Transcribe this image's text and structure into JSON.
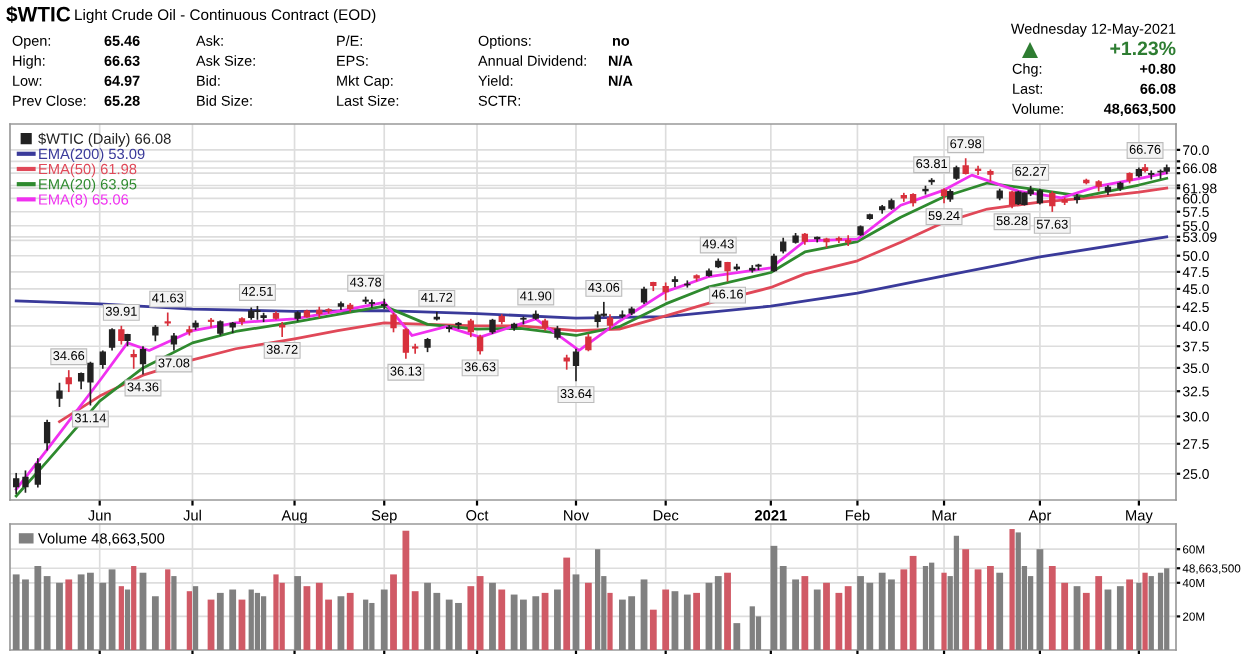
{
  "chart_data": [
    {
      "type": "other",
      "title": "$WTIC",
      "subtitle": "Light Crude Oil - Continuous Contract (EOD)",
      "annotations": [
        "Open:",
        "65.46",
        "High:",
        "66.63",
        "Low:",
        "64.97",
        "Prev Close:",
        "65.28",
        "Ask:",
        "Ask Size:",
        "Bid:",
        "Bid Size:",
        "P/E:",
        "EPS:",
        "Mkt Cap:",
        "Last Size:",
        "Options:",
        "no",
        "Annual Dividend:",
        "N/A",
        "Yield:",
        "N/A",
        "SCTR:",
        "Wednesday 12-May-2021",
        "+1.23%",
        "Chg:",
        "+0.80",
        "Last:",
        "66.08",
        "Volume:",
        "48,663,500"
      ]
    },
    {
      "type": "candlestick",
      "log": true,
      "grid": true,
      "legend": "top left",
      "xlim": [
        "2020-05-03",
        "2021-05-15"
      ],
      "xticks": [
        {
          "value": "2020-06-01",
          "label": "Jun"
        },
        {
          "value": "2020-07-01",
          "label": "Jul"
        },
        {
          "value": "2020-08-03",
          "label": "Aug"
        },
        {
          "value": "2020-09-01",
          "label": "Sep"
        },
        {
          "value": "2020-10-01",
          "label": "Oct"
        },
        {
          "value": "2020-11-02",
          "label": "Nov"
        },
        {
          "value": "2020-12-01",
          "label": "Dec"
        },
        {
          "value": "2021-01-04",
          "label": "2021"
        },
        {
          "value": "2021-02-01",
          "label": "Feb"
        },
        {
          "value": "2021-03-01",
          "label": "Mar"
        },
        {
          "value": "2021-04-01",
          "label": "Apr"
        },
        {
          "value": "2021-05-03",
          "label": "May"
        }
      ],
      "ylim": [
        23,
        76
      ],
      "yticks": [
        {
          "value": 25,
          "label": "25.0"
        },
        27.5,
        {
          "value": 30,
          "label": "30.0"
        },
        32.5,
        {
          "value": 35,
          "label": "35.0"
        },
        37.5,
        {
          "value": 40,
          "label": "40.0"
        },
        42.5,
        {
          "value": 45,
          "label": "45.0"
        },
        47.5,
        {
          "value": 50,
          "label": "50.0"
        },
        {
          "value": 52.5,
          "label": null
        },
        53.09,
        {
          "value": 55,
          "label": "55.0"
        },
        57.5,
        {
          "value": 60,
          "label": "60.0"
        },
        61.98,
        {
          "value": 62.5,
          "label": null
        },
        {
          "value": 65,
          "label": null
        },
        66.08,
        {
          "value": 67.5,
          "label": null
        },
        {
          "value": 70,
          "label": "70.0"
        }
      ],
      "series": [
        {
          "name": "$WTIC (Daily) 66.08",
          "type": "candlestick",
          "color": "#222222",
          "colors": [
            "#222222",
            "#222222",
            "#222222",
            "#222222",
            "#222222",
            "#d8303c",
            "#222222",
            "#222222",
            "#222222",
            "#222222",
            "#d8303c",
            "#222222",
            "#d8303c",
            "#222222",
            "#222222",
            "#d8303c",
            "#222222",
            "#d8303c",
            "#222222",
            "#d8303c",
            "#222222",
            "#222222",
            "#d8303c",
            "#222222",
            "#222222",
            "#222222",
            "#d8303c",
            "#d8303c",
            "#222222",
            "#d8303c",
            "#d8303c",
            "#d8303c",
            "#222222",
            "#d8303c",
            "#222222",
            "#222222",
            "#222222",
            "#d8303c",
            "#d8303c",
            "#d8303c",
            "#222222",
            "#222222",
            "#222222",
            "#222222",
            "#d8303c",
            "#d8303c",
            "#222222",
            "#d8303c",
            "#222222",
            "#222222",
            "#222222",
            "#d8303c",
            "#222222",
            "#d8303c",
            "#222222",
            "#d8303c",
            "#222222",
            "#222222",
            "#d8303c",
            "#222222",
            "#222222",
            "#222222",
            "#d8303c",
            "#d8303c",
            "#222222",
            "#222222",
            "#d8303c",
            "#222222",
            "#222222",
            "#d8303c",
            "#222222",
            "#222222",
            "#222222",
            "#222222",
            "#222222",
            "#222222",
            "#d8303c",
            "#222222",
            "#d8303c",
            "#d8303c",
            "#d8303c",
            "#222222",
            "#222222",
            "#222222",
            "#222222",
            "#d8303c",
            "#d8303c",
            "#222222",
            "#222222",
            "#d8303c",
            "#222222",
            "#222222",
            "#d8303c",
            "#d8303c",
            "#d8303c",
            "#222222",
            "#d8303c",
            "#222222",
            "#222222",
            "#222222",
            "#222222",
            "#d8303c",
            "#d8303c",
            "#222222",
            "#d8303c",
            "#d8303c",
            "#222222",
            "#222222",
            "#d8303c",
            "#222222",
            "#d8303c",
            "#222222",
            "#222222",
            "#222222"
          ],
          "x": [
            "2020-05-05",
            "2020-05-08",
            "2020-05-12",
            "2020-05-15",
            "2020-05-19",
            "2020-05-22",
            "2020-05-26",
            "2020-05-29",
            "2020-06-02",
            "2020-06-05",
            "2020-06-08",
            "2020-06-10",
            "2020-06-12",
            "2020-06-15",
            "2020-06-19",
            "2020-06-23",
            "2020-06-25",
            "2020-06-30",
            "2020-07-02",
            "2020-07-07",
            "2020-07-10",
            "2020-07-14",
            "2020-07-17",
            "2020-07-20",
            "2020-07-22",
            "2020-07-24",
            "2020-07-28",
            "2020-07-30",
            "2020-08-04",
            "2020-08-07",
            "2020-08-11",
            "2020-08-14",
            "2020-08-18",
            "2020-08-21",
            "2020-08-26",
            "2020-08-28",
            "2020-09-01",
            "2020-09-04",
            "2020-09-08",
            "2020-09-11",
            "2020-09-15",
            "2020-09-18",
            "2020-09-22",
            "2020-09-25",
            "2020-09-29",
            "2020-10-02",
            "2020-10-06",
            "2020-10-09",
            "2020-10-13",
            "2020-10-16",
            "2020-10-20",
            "2020-10-23",
            "2020-10-27",
            "2020-10-30",
            "2020-11-02",
            "2020-11-06",
            "2020-11-09",
            "2020-11-11",
            "2020-11-13",
            "2020-11-17",
            "2020-11-20",
            "2020-11-24",
            "2020-11-27",
            "2020-12-01",
            "2020-12-04",
            "2020-12-08",
            "2020-12-11",
            "2020-12-15",
            "2020-12-18",
            "2020-12-21",
            "2020-12-24",
            "2020-12-29",
            "2020-12-31",
            "2021-01-05",
            "2021-01-08",
            "2021-01-12",
            "2021-01-15",
            "2021-01-19",
            "2021-01-22",
            "2021-01-26",
            "2021-01-29",
            "2021-02-02",
            "2021-02-05",
            "2021-02-09",
            "2021-02-12",
            "2021-02-16",
            "2021-02-19",
            "2021-02-23",
            "2021-02-25",
            "2021-03-01",
            "2021-03-03",
            "2021-03-05",
            "2021-03-08",
            "2021-03-12",
            "2021-03-16",
            "2021-03-19",
            "2021-03-23",
            "2021-03-25",
            "2021-03-27",
            "2021-03-29",
            "2021-04-01",
            "2021-04-05",
            "2021-04-09",
            "2021-04-13",
            "2021-04-16",
            "2021-04-20",
            "2021-04-23",
            "2021-04-27",
            "2021-04-30",
            "2021-05-03",
            "2021-05-05",
            "2021-05-07",
            "2021-05-10",
            "2021-05-12"
          ],
          "ohlc": [
            [
              24.0,
              25.0,
              23.5,
              24.6
            ],
            [
              24.0,
              25.2,
              23.6,
              24.7
            ],
            [
              24.2,
              26.2,
              24.0,
              25.8
            ],
            [
              27.6,
              29.6,
              27.0,
              29.4
            ],
            [
              31.8,
              33.3,
              31.0,
              32.5
            ],
            [
              33.9,
              34.66,
              32.5,
              33.3
            ],
            [
              33.6,
              34.4,
              32.8,
              34.35
            ],
            [
              33.5,
              35.6,
              31.14,
              35.5
            ],
            [
              35.4,
              36.9,
              35.0,
              36.8
            ],
            [
              37.4,
              39.6,
              37.1,
              39.5
            ],
            [
              39.5,
              39.91,
              37.8,
              38.2
            ],
            [
              38.2,
              38.9,
              37.6,
              38.9
            ],
            [
              36.5,
              37.0,
              35.0,
              36.3
            ],
            [
              35.5,
              37.4,
              34.36,
              37.1
            ],
            [
              38.9,
              40.0,
              38.2,
              39.8
            ],
            [
              40.5,
              41.63,
              40.1,
              40.4
            ],
            [
              37.8,
              39.0,
              37.08,
              38.7
            ],
            [
              39.5,
              39.9,
              38.9,
              39.3
            ],
            [
              39.9,
              40.6,
              39.6,
              40.3
            ],
            [
              40.7,
              40.9,
              39.9,
              40.6
            ],
            [
              39.1,
              40.6,
              38.9,
              40.5
            ],
            [
              39.9,
              40.4,
              39.2,
              40.3
            ],
            [
              40.9,
              41.0,
              40.2,
              40.6
            ],
            [
              41.1,
              42.3,
              40.9,
              41.9
            ],
            [
              41.9,
              42.51,
              40.9,
              41.9
            ],
            [
              41.1,
              41.6,
              40.6,
              41.3
            ],
            [
              41.6,
              41.8,
              40.9,
              41.0
            ],
            [
              40.1,
              40.4,
              38.72,
              39.9
            ],
            [
              41.0,
              41.8,
              40.7,
              41.7
            ],
            [
              41.9,
              42.0,
              41.2,
              41.2
            ],
            [
              42.0,
              42.4,
              41.1,
              41.6
            ],
            [
              42.1,
              42.2,
              41.7,
              42.0
            ],
            [
              42.6,
              43.1,
              42.2,
              42.9
            ],
            [
              42.7,
              42.9,
              41.9,
              42.3
            ],
            [
              43.3,
              43.78,
              43.0,
              43.4
            ],
            [
              43.0,
              43.4,
              42.5,
              43.0
            ],
            [
              42.7,
              43.5,
              42.3,
              42.8
            ],
            [
              41.4,
              41.6,
              39.3,
              39.8
            ],
            [
              39.5,
              39.6,
              36.13,
              36.8
            ],
            [
              37.4,
              37.7,
              36.7,
              37.3
            ],
            [
              37.4,
              38.4,
              36.9,
              38.3
            ],
            [
              40.9,
              41.72,
              40.8,
              41.1
            ],
            [
              39.7,
              40.0,
              39.3,
              39.8
            ],
            [
              40.2,
              40.4,
              39.7,
              40.3
            ],
            [
              40.6,
              40.8,
              38.7,
              39.3
            ],
            [
              38.6,
              38.8,
              36.63,
              37.0
            ],
            [
              39.3,
              40.8,
              39.1,
              40.7
            ],
            [
              41.2,
              41.4,
              40.3,
              40.6
            ],
            [
              39.8,
              40.3,
              39.5,
              40.2
            ],
            [
              40.9,
              41.1,
              40.3,
              40.9
            ],
            [
              41.0,
              41.9,
              40.9,
              41.5
            ],
            [
              40.6,
              40.8,
              39.5,
              39.85
            ],
            [
              38.6,
              39.9,
              38.4,
              39.6
            ],
            [
              36.1,
              36.4,
              34.9,
              35.8
            ],
            [
              35.3,
              37.1,
              33.64,
              36.8
            ],
            [
              38.6,
              38.9,
              37.0,
              37.1
            ],
            [
              40.6,
              41.8,
              39.9,
              41.4
            ],
            [
              41.4,
              43.06,
              41.3,
              41.5
            ],
            [
              41.0,
              41.4,
              39.6,
              40.1
            ],
            [
              41.3,
              41.9,
              41.1,
              41.4
            ],
            [
              41.7,
              42.4,
              41.5,
              42.2
            ],
            [
              43.2,
              45.2,
              43.0,
              44.9
            ],
            [
              45.9,
              45.9,
              44.8,
              45.5
            ],
            [
              45.3,
              45.8,
              43.5,
              44.6
            ],
            [
              46.1,
              46.7,
              45.4,
              46.3
            ],
            [
              45.6,
              46.1,
              45.3,
              45.6
            ],
            [
              46.9,
              47.0,
              46.2,
              46.6
            ],
            [
              47.0,
              47.9,
              46.9,
              47.6
            ],
            [
              48.3,
              49.43,
              48.2,
              49.1
            ],
            [
              48.9,
              48.9,
              46.16,
              47.7
            ],
            [
              48.0,
              48.6,
              47.8,
              48.2
            ],
            [
              47.8,
              48.4,
              47.5,
              48.0
            ],
            [
              48.4,
              48.6,
              47.9,
              48.5
            ],
            [
              47.7,
              50.2,
              47.6,
              49.9
            ],
            [
              50.8,
              52.8,
              50.5,
              52.2
            ],
            [
              52.2,
              53.6,
              52.1,
              53.2
            ],
            [
              53.5,
              53.6,
              51.9,
              52.4
            ],
            [
              52.8,
              53.0,
              52.3,
              52.98
            ],
            [
              52.7,
              52.8,
              51.4,
              52.3
            ],
            [
              52.8,
              53.0,
              52.2,
              52.6
            ],
            [
              52.5,
              53.2,
              51.7,
              52.2
            ],
            [
              53.5,
              54.9,
              53.4,
              54.8
            ],
            [
              56.3,
              57.0,
              56.2,
              56.9
            ],
            [
              57.9,
              58.6,
              57.3,
              58.4
            ],
            [
              58.2,
              59.8,
              58.0,
              59.5
            ],
            [
              60.5,
              60.9,
              59.5,
              60.1
            ],
            [
              60.7,
              60.8,
              58.6,
              59.2
            ],
            [
              61.5,
              62.3,
              60.9,
              61.7
            ],
            [
              63.3,
              63.81,
              62.8,
              63.5
            ],
            [
              61.6,
              61.8,
              59.24,
              60.6
            ],
            [
              59.9,
              61.6,
              59.5,
              61.3
            ],
            [
              64.0,
              66.4,
              63.8,
              66.1
            ],
            [
              66.5,
              67.98,
              64.9,
              65.0
            ],
            [
              65.8,
              66.4,
              64.8,
              65.6
            ],
            [
              65.3,
              65.6,
              63.5,
              64.8
            ],
            [
              60.1,
              61.7,
              59.8,
              61.4
            ],
            [
              61.2,
              61.3,
              58.28,
              58.8
            ],
            [
              59.0,
              61.3,
              58.9,
              61.2
            ],
            [
              58.9,
              61.0,
              58.8,
              60.97
            ],
            [
              60.9,
              62.27,
              60.6,
              61.6
            ],
            [
              59.2,
              61.7,
              59.0,
              61.45
            ],
            [
              60.9,
              61.2,
              57.63,
              58.65
            ],
            [
              59.7,
              60.0,
              58.9,
              59.3
            ],
            [
              59.8,
              60.7,
              59.2,
              60.2
            ],
            [
              63.5,
              63.7,
              62.9,
              63.1
            ],
            [
              63.2,
              63.4,
              61.5,
              62.4
            ],
            [
              61.4,
              62.4,
              60.8,
              62.1
            ],
            [
              62.0,
              63.1,
              61.6,
              62.9
            ],
            [
              64.9,
              65.0,
              63.1,
              63.6
            ],
            [
              64.5,
              66.0,
              64.3,
              65.7
            ],
            [
              66.1,
              66.76,
              65.3,
              65.6
            ],
            [
              64.8,
              65.4,
              63.9,
              64.9
            ],
            [
              65.3,
              65.6,
              64.0,
              65.3
            ],
            [
              65.46,
              66.63,
              64.97,
              66.08
            ]
          ]
        },
        {
          "name": "EMA(200) 53.09",
          "type": "line",
          "color": "#3a3a9a",
          "x": [
            "2020-05-05",
            "2020-06-01",
            "2020-07-01",
            "2020-08-03",
            "2020-09-01",
            "2020-10-01",
            "2020-11-02",
            "2020-12-01",
            "2021-01-04",
            "2021-02-01",
            "2021-03-01",
            "2021-04-01",
            "2021-05-12"
          ],
          "values": [
            43.3,
            42.9,
            42.2,
            41.9,
            42.0,
            41.6,
            41.0,
            41.2,
            42.6,
            44.4,
            46.9,
            49.8,
            53.09
          ]
        },
        {
          "name": "EMA(50) 61.98",
          "type": "line",
          "color": "#e04858",
          "x": [
            "2020-05-19",
            "2020-06-01",
            "2020-06-15",
            "2020-07-01",
            "2020-07-15",
            "2020-08-03",
            "2020-08-17",
            "2020-09-01",
            "2020-09-15",
            "2020-10-01",
            "2020-10-15",
            "2020-11-02",
            "2020-11-16",
            "2020-12-01",
            "2020-12-15",
            "2021-01-04",
            "2021-01-15",
            "2021-02-01",
            "2021-02-15",
            "2021-03-01",
            "2021-03-15",
            "2021-04-01",
            "2021-04-15",
            "2021-05-03",
            "2021-05-12"
          ],
          "values": [
            29.5,
            32.0,
            34.2,
            35.9,
            37.2,
            38.4,
            39.4,
            40.4,
            40.2,
            40.0,
            40.0,
            39.4,
            39.6,
            41.3,
            43.0,
            45.2,
            47.2,
            49.2,
            52.2,
            55.6,
            58.0,
            59.3,
            60.0,
            61.2,
            61.98
          ]
        },
        {
          "name": "EMA(20) 63.95",
          "type": "line",
          "color": "#2e8a2e",
          "x": [
            "2020-05-05",
            "2020-05-15",
            "2020-06-01",
            "2020-06-15",
            "2020-07-01",
            "2020-07-15",
            "2020-08-03",
            "2020-08-17",
            "2020-09-01",
            "2020-09-15",
            "2020-10-01",
            "2020-10-15",
            "2020-11-02",
            "2020-11-16",
            "2020-12-01",
            "2020-12-15",
            "2021-01-04",
            "2021-01-15",
            "2021-02-01",
            "2021-02-15",
            "2021-03-01",
            "2021-03-15",
            "2021-04-01",
            "2021-04-15",
            "2021-05-03",
            "2021-05-12"
          ],
          "values": [
            23.3,
            26.0,
            31.5,
            35.0,
            37.9,
            39.3,
            40.5,
            41.5,
            42.6,
            40.2,
            39.6,
            39.7,
            38.8,
            39.9,
            42.9,
            45.3,
            47.4,
            50.6,
            52.3,
            56.5,
            60.3,
            63.0,
            61.6,
            60.4,
            62.6,
            63.95
          ]
        },
        {
          "name": "EMA(8) 65.06",
          "type": "line",
          "color": "#f030f0",
          "x": [
            "2020-05-05",
            "2020-05-15",
            "2020-06-01",
            "2020-06-10",
            "2020-06-17",
            "2020-07-01",
            "2020-07-15",
            "2020-08-03",
            "2020-08-17",
            "2020-09-01",
            "2020-09-10",
            "2020-09-21",
            "2020-10-02",
            "2020-10-20",
            "2020-11-03",
            "2020-11-16",
            "2020-12-01",
            "2020-12-15",
            "2021-01-04",
            "2021-01-15",
            "2021-02-01",
            "2021-02-15",
            "2021-03-01",
            "2021-03-10",
            "2021-03-25",
            "2021-04-08",
            "2021-04-20",
            "2021-05-03",
            "2021-05-12"
          ],
          "values": [
            23.8,
            27.0,
            33.6,
            37.9,
            37.0,
            39.4,
            40.4,
            40.9,
            41.9,
            43.1,
            38.8,
            39.9,
            38.6,
            40.9,
            37.0,
            40.6,
            44.6,
            46.8,
            48.1,
            52.4,
            52.7,
            58.7,
            61.6,
            64.6,
            61.4,
            60.1,
            62.4,
            63.9,
            65.06
          ]
        }
      ],
      "annotations": [
        {
          "text": "34.66",
          "x": "2020-05-22",
          "y": 34.66
        },
        {
          "text": "31.14",
          "x": "2020-05-29",
          "y": 31.14
        },
        {
          "text": "39.91",
          "x": "2020-06-08",
          "y": 39.91
        },
        {
          "text": "34.36",
          "x": "2020-06-15",
          "y": 34.36
        },
        {
          "text": "41.63",
          "x": "2020-06-23",
          "y": 41.63
        },
        {
          "text": "37.08",
          "x": "2020-06-25",
          "y": 37.08
        },
        {
          "text": "42.51",
          "x": "2020-07-22",
          "y": 42.51
        },
        {
          "text": "38.72",
          "x": "2020-07-30",
          "y": 38.72
        },
        {
          "text": "43.78",
          "x": "2020-08-26",
          "y": 43.78
        },
        {
          "text": "36.13",
          "x": "2020-09-08",
          "y": 36.13
        },
        {
          "text": "41.72",
          "x": "2020-09-18",
          "y": 41.72
        },
        {
          "text": "36.63",
          "x": "2020-10-02",
          "y": 36.63
        },
        {
          "text": "41.90",
          "x": "2020-10-20",
          "y": 41.9
        },
        {
          "text": "33.64",
          "x": "2020-11-02",
          "y": 33.64
        },
        {
          "text": "43.06",
          "x": "2020-11-11",
          "y": 43.06
        },
        {
          "text": "49.43",
          "x": "2020-12-18",
          "y": 49.43
        },
        {
          "text": "46.16",
          "x": "2020-12-21",
          "y": 46.16
        },
        {
          "text": "63.81",
          "x": "2021-02-25",
          "y": 63.81
        },
        {
          "text": "59.24",
          "x": "2021-03-01",
          "y": 59.24
        },
        {
          "text": "67.98",
          "x": "2021-03-08",
          "y": 67.98
        },
        {
          "text": "58.28",
          "x": "2021-03-23",
          "y": 58.28
        },
        {
          "text": "62.27",
          "x": "2021-03-29",
          "y": 62.27
        },
        {
          "text": "57.63",
          "x": "2021-04-05",
          "y": 57.63
        },
        {
          "text": "66.76",
          "x": "2021-05-05",
          "y": 66.76
        }
      ]
    },
    {
      "type": "bar",
      "grid": true,
      "legend": "top left",
      "tick_labels": "y",
      "xlim": [
        "2020-05-03",
        "2021-05-15"
      ],
      "xticks": [
        {
          "value": "2020-06-01",
          "label": null
        },
        {
          "value": "2020-07-01",
          "label": null
        },
        {
          "value": "2020-08-03",
          "label": null
        },
        {
          "value": "2020-09-01",
          "label": null
        },
        {
          "value": "2020-10-01",
          "label": null
        },
        {
          "value": "2020-11-02",
          "label": null
        },
        {
          "value": "2020-12-01",
          "label": null
        },
        {
          "value": "2021-01-04",
          "label": null
        },
        {
          "value": "2021-02-01",
          "label": null
        },
        {
          "value": "2021-03-01",
          "label": null
        },
        {
          "value": "2021-04-01",
          "label": null
        },
        {
          "value": "2021-05-03",
          "label": null
        }
      ],
      "ylim": [
        0,
        75000000
      ],
      "yticks": [
        {
          "value": 20000000,
          "label": "20M"
        },
        {
          "value": 40000000,
          "label": "40M"
        },
        {
          "value": 48663500,
          "label": "48,663,500"
        },
        {
          "value": 60000000,
          "label": "60M"
        }
      ],
      "series": [
        {
          "name": "Volume 48,663,500",
          "color": "#808080",
          "x": [
            "2020-05-05",
            "2020-05-08",
            "2020-05-12",
            "2020-05-15",
            "2020-05-19",
            "2020-05-22",
            "2020-05-26",
            "2020-05-29",
            "2020-06-02",
            "2020-06-05",
            "2020-06-08",
            "2020-06-10",
            "2020-06-12",
            "2020-06-15",
            "2020-06-19",
            "2020-06-23",
            "2020-06-25",
            "2020-06-30",
            "2020-07-02",
            "2020-07-07",
            "2020-07-10",
            "2020-07-14",
            "2020-07-17",
            "2020-07-20",
            "2020-07-22",
            "2020-07-24",
            "2020-07-28",
            "2020-07-30",
            "2020-08-04",
            "2020-08-07",
            "2020-08-11",
            "2020-08-14",
            "2020-08-18",
            "2020-08-21",
            "2020-08-26",
            "2020-08-28",
            "2020-09-01",
            "2020-09-04",
            "2020-09-08",
            "2020-09-11",
            "2020-09-15",
            "2020-09-18",
            "2020-09-22",
            "2020-09-25",
            "2020-09-29",
            "2020-10-02",
            "2020-10-06",
            "2020-10-09",
            "2020-10-13",
            "2020-10-16",
            "2020-10-20",
            "2020-10-23",
            "2020-10-27",
            "2020-10-30",
            "2020-11-02",
            "2020-11-06",
            "2020-11-09",
            "2020-11-11",
            "2020-11-13",
            "2020-11-17",
            "2020-11-20",
            "2020-11-24",
            "2020-11-27",
            "2020-12-01",
            "2020-12-04",
            "2020-12-08",
            "2020-12-11",
            "2020-12-15",
            "2020-12-18",
            "2020-12-21",
            "2020-12-24",
            "2020-12-29",
            "2020-12-31",
            "2021-01-05",
            "2021-01-08",
            "2021-01-12",
            "2021-01-15",
            "2021-01-19",
            "2021-01-22",
            "2021-01-26",
            "2021-01-29",
            "2021-02-02",
            "2021-02-05",
            "2021-02-09",
            "2021-02-12",
            "2021-02-16",
            "2021-02-19",
            "2021-02-23",
            "2021-02-25",
            "2021-03-01",
            "2021-03-03",
            "2021-03-05",
            "2021-03-08",
            "2021-03-12",
            "2021-03-16",
            "2021-03-19",
            "2021-03-23",
            "2021-03-25",
            "2021-03-27",
            "2021-03-29",
            "2021-04-01",
            "2021-04-05",
            "2021-04-09",
            "2021-04-13",
            "2021-04-16",
            "2021-04-20",
            "2021-04-23",
            "2021-04-27",
            "2021-04-30",
            "2021-05-03",
            "2021-05-05",
            "2021-05-07",
            "2021-05-10",
            "2021-05-12"
          ],
          "values": [
            45000000,
            42000000,
            50000000,
            44000000,
            40000000,
            42000000,
            45000000,
            46000000,
            40000000,
            48000000,
            38000000,
            36000000,
            50000000,
            46000000,
            32000000,
            48000000,
            44000000,
            35000000,
            38000000,
            30000000,
            34000000,
            36000000,
            30000000,
            36000000,
            34000000,
            32000000,
            45000000,
            40000000,
            44000000,
            38000000,
            40000000,
            30000000,
            32000000,
            34000000,
            30000000,
            28000000,
            36000000,
            45000000,
            71000000,
            35000000,
            40000000,
            34000000,
            30000000,
            28000000,
            38000000,
            44000000,
            40000000,
            36000000,
            33000000,
            30000000,
            32000000,
            34000000,
            36000000,
            55000000,
            45000000,
            40000000,
            60000000,
            44000000,
            34000000,
            30000000,
            32000000,
            42000000,
            24000000,
            36000000,
            35000000,
            33000000,
            34000000,
            40000000,
            44000000,
            46000000,
            16000000,
            26000000,
            20000000,
            62000000,
            50000000,
            42000000,
            44000000,
            36000000,
            40000000,
            34000000,
            38000000,
            44000000,
            40000000,
            46000000,
            42000000,
            48000000,
            56000000,
            50000000,
            52000000,
            46000000,
            44000000,
            68000000,
            60000000,
            48000000,
            50000000,
            46000000,
            72000000,
            70000000,
            50000000,
            44000000,
            60000000,
            50000000,
            40000000,
            38000000,
            34000000,
            44000000,
            36000000,
            38000000,
            42000000,
            40000000,
            46000000,
            44000000,
            46000000,
            48663500
          ],
          "colors": [
            "#808080",
            "#808080",
            "#808080",
            "#808080",
            "#808080",
            "#d05a66",
            "#808080",
            "#808080",
            "#808080",
            "#808080",
            "#d05a66",
            "#808080",
            "#d05a66",
            "#808080",
            "#808080",
            "#d05a66",
            "#808080",
            "#d05a66",
            "#808080",
            "#d05a66",
            "#808080",
            "#808080",
            "#d05a66",
            "#808080",
            "#808080",
            "#808080",
            "#d05a66",
            "#d05a66",
            "#808080",
            "#d05a66",
            "#d05a66",
            "#d05a66",
            "#808080",
            "#d05a66",
            "#808080",
            "#808080",
            "#808080",
            "#d05a66",
            "#d05a66",
            "#d05a66",
            "#808080",
            "#808080",
            "#808080",
            "#808080",
            "#d05a66",
            "#d05a66",
            "#808080",
            "#d05a66",
            "#808080",
            "#808080",
            "#808080",
            "#d05a66",
            "#808080",
            "#d05a66",
            "#808080",
            "#d05a66",
            "#808080",
            "#808080",
            "#d05a66",
            "#808080",
            "#808080",
            "#808080",
            "#d05a66",
            "#d05a66",
            "#808080",
            "#808080",
            "#d05a66",
            "#808080",
            "#808080",
            "#d05a66",
            "#808080",
            "#808080",
            "#808080",
            "#808080",
            "#808080",
            "#808080",
            "#d05a66",
            "#808080",
            "#d05a66",
            "#d05a66",
            "#d05a66",
            "#808080",
            "#808080",
            "#808080",
            "#808080",
            "#d05a66",
            "#d05a66",
            "#808080",
            "#808080",
            "#d05a66",
            "#808080",
            "#808080",
            "#d05a66",
            "#d05a66",
            "#d05a66",
            "#808080",
            "#d05a66",
            "#808080",
            "#808080",
            "#808080",
            "#808080",
            "#d05a66",
            "#d05a66",
            "#808080",
            "#d05a66",
            "#d05a66",
            "#808080",
            "#808080",
            "#d05a66",
            "#808080",
            "#d05a66",
            "#808080",
            "#808080",
            "#808080"
          ]
        }
      ]
    }
  ]
}
